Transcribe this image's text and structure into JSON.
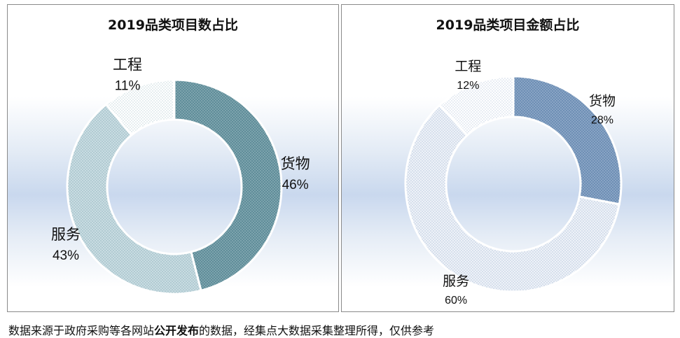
{
  "chart_data": [
    {
      "type": "pie",
      "title": "2019品类项目数占比",
      "slices": [
        {
          "name": "货物",
          "pct_label": "46%",
          "value": 46
        },
        {
          "name": "服务",
          "pct_label": "43%",
          "value": 43
        },
        {
          "name": "工程",
          "pct_label": "11%",
          "value": 11
        }
      ]
    },
    {
      "type": "pie",
      "title": "2019品类项目金额占比",
      "slices": [
        {
          "name": "货物",
          "pct_label": "28%",
          "value": 28
        },
        {
          "name": "服务",
          "pct_label": "60%",
          "value": 60
        },
        {
          "name": "工程",
          "pct_label": "12%",
          "value": 12
        }
      ]
    }
  ],
  "footer": {
    "text_before": "数据来源于政府采购等各网站",
    "text_bold": "公开发布",
    "text_after": "的数据，经集点大数据采集整理所得，仅供参考"
  }
}
